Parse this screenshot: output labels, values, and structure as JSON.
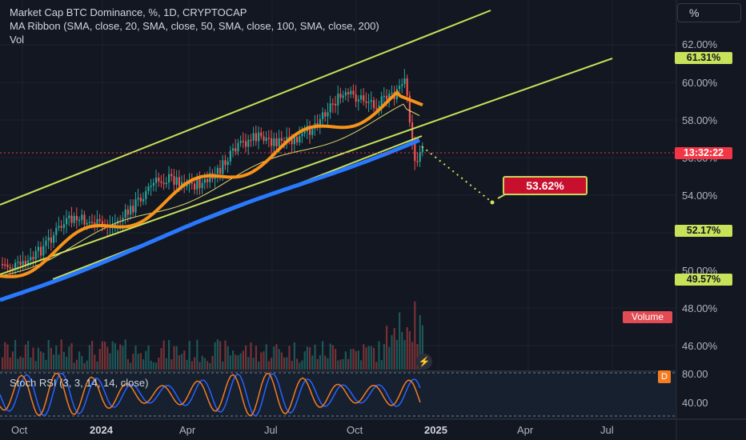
{
  "legend": {
    "line1": "Market Cap BTC Dominance, %, 1D, CRYPTOCAP",
    "line2": "MA Ribbon (SMA, close, 20, SMA, close, 50, SMA, close, 100, SMA, close, 200)",
    "line3": "Vol"
  },
  "scale_button": "%",
  "y_axis": {
    "ticks": [
      "62.00%",
      "60.00%",
      "58.00%",
      "56.00%",
      "54.00%",
      "52.00%",
      "50.00%",
      "48.00%",
      "46.00%"
    ],
    "tags": [
      {
        "text": "61.31%",
        "color": "#c8e25a"
      },
      {
        "text": "13:32:22",
        "color": "#f23645"
      },
      {
        "text": "52.17%",
        "color": "#c8e25a"
      },
      {
        "text": "49.57%",
        "color": "#c8e25a"
      }
    ]
  },
  "volume_tag": "Volume",
  "rsi": {
    "label": "Stoch RSI (3, 3, 14, 14, close)",
    "ticks": [
      "80.00",
      "40.00"
    ],
    "badge": "D"
  },
  "x_axis": [
    "Oct",
    "2024",
    "Apr",
    "Jul",
    "Oct",
    "2025",
    "Apr",
    "Jul"
  ],
  "callout": "53.62%",
  "colors": {
    "background": "#131722",
    "channel": "#c8e25a",
    "ma_fast": "#f7931a",
    "ma_slow": "#2979ff",
    "candle_up": "#26a69a",
    "candle_down": "#ef5350"
  }
}
